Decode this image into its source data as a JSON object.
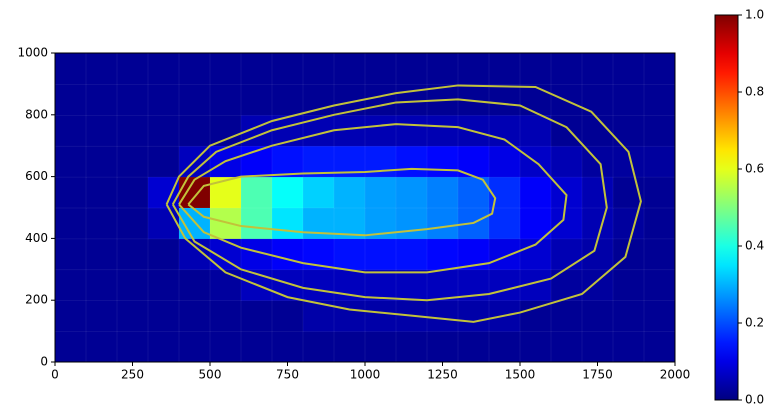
{
  "chart_data": {
    "type": "contour",
    "x": [
      50,
      150,
      250,
      350,
      450,
      550,
      650,
      750,
      850,
      950,
      1050,
      1150,
      1250,
      1350,
      1450,
      1550,
      1650,
      1750,
      1850,
      1950
    ],
    "y": [
      50,
      150,
      250,
      350,
      450,
      550,
      650,
      750,
      850,
      950
    ],
    "z": [
      [
        0.02,
        0.02,
        0.02,
        0.02,
        0.02,
        0.02,
        0.02,
        0.02,
        0.02,
        0.02,
        0.02,
        0.02,
        0.02,
        0.02,
        0.02,
        0.02,
        0.02,
        0.02,
        0.02,
        0.02
      ],
      [
        0.02,
        0.02,
        0.02,
        0.02,
        0.02,
        0.02,
        0.02,
        0.02,
        0.04,
        0.04,
        0.04,
        0.04,
        0.04,
        0.04,
        0.04,
        0.02,
        0.02,
        0.02,
        0.02,
        0.02
      ],
      [
        0.02,
        0.02,
        0.02,
        0.02,
        0.02,
        0.03,
        0.06,
        0.06,
        0.06,
        0.06,
        0.06,
        0.06,
        0.06,
        0.06,
        0.06,
        0.06,
        0.03,
        0.03,
        0.02,
        0.02
      ],
      [
        0.02,
        0.02,
        0.02,
        0.02,
        0.05,
        0.08,
        0.1,
        0.12,
        0.13,
        0.14,
        0.14,
        0.14,
        0.13,
        0.12,
        0.1,
        0.08,
        0.05,
        0.04,
        0.02,
        0.02
      ],
      [
        0.02,
        0.02,
        0.02,
        0.05,
        0.3,
        0.55,
        0.45,
        0.35,
        0.3,
        0.3,
        0.28,
        0.27,
        0.25,
        0.22,
        0.17,
        0.12,
        0.08,
        0.05,
        0.03,
        0.02
      ],
      [
        0.02,
        0.02,
        0.02,
        0.08,
        1.0,
        0.6,
        0.45,
        0.38,
        0.33,
        0.3,
        0.28,
        0.27,
        0.25,
        0.22,
        0.17,
        0.12,
        0.08,
        0.05,
        0.02,
        0.02
      ],
      [
        0.02,
        0.02,
        0.02,
        0.02,
        0.06,
        0.1,
        0.12,
        0.14,
        0.15,
        0.15,
        0.15,
        0.14,
        0.13,
        0.12,
        0.1,
        0.07,
        0.05,
        0.03,
        0.03,
        0.03
      ],
      [
        0.02,
        0.02,
        0.02,
        0.02,
        0.02,
        0.02,
        0.05,
        0.05,
        0.05,
        0.05,
        0.05,
        0.05,
        0.05,
        0.05,
        0.05,
        0.05,
        0.02,
        0.02,
        0.02,
        0.02
      ],
      [
        0.02,
        0.02,
        0.02,
        0.02,
        0.02,
        0.02,
        0.02,
        0.02,
        0.02,
        0.02,
        0.02,
        0.02,
        0.02,
        0.02,
        0.02,
        0.02,
        0.02,
        0.02,
        0.02,
        0.02
      ],
      [
        0.02,
        0.02,
        0.02,
        0.02,
        0.02,
        0.02,
        0.02,
        0.02,
        0.02,
        0.02,
        0.02,
        0.02,
        0.02,
        0.02,
        0.02,
        0.02,
        0.02,
        0.02,
        0.02,
        0.02
      ]
    ],
    "colormap": "jet",
    "contour_color": "#c2c23a",
    "contours": [
      {
        "x": [
          430,
          480,
          600,
          800,
          1000,
          1150,
          1300,
          1380,
          1420,
          1410,
          1350,
          1200,
          1000,
          800,
          600,
          480,
          430
        ],
        "y": [
          510,
          570,
          600,
          610,
          615,
          625,
          620,
          590,
          530,
          480,
          450,
          430,
          410,
          420,
          440,
          470,
          510
        ]
      },
      {
        "x": [
          400,
          450,
          550,
          700,
          900,
          1100,
          1300,
          1450,
          1560,
          1650,
          1640,
          1550,
          1400,
          1200,
          1000,
          800,
          600,
          480,
          400
        ],
        "y": [
          510,
          590,
          650,
          700,
          750,
          770,
          760,
          720,
          640,
          540,
          460,
          380,
          320,
          290,
          290,
          320,
          370,
          420,
          510
        ]
      },
      {
        "x": [
          380,
          430,
          520,
          700,
          900,
          1100,
          1300,
          1500,
          1650,
          1760,
          1780,
          1740,
          1600,
          1400,
          1200,
          1000,
          800,
          600,
          450,
          380
        ],
        "y": [
          510,
          600,
          680,
          750,
          800,
          840,
          850,
          830,
          760,
          640,
          500,
          360,
          270,
          220,
          200,
          210,
          240,
          300,
          390,
          510
        ]
      },
      {
        "x": [
          360,
          400,
          500,
          700,
          900,
          1100,
          1300,
          1550,
          1730,
          1850,
          1890,
          1840,
          1700,
          1500,
          1350,
          1150,
          950,
          750,
          550,
          420,
          360
        ],
        "y": [
          510,
          600,
          700,
          780,
          830,
          870,
          895,
          890,
          810,
          680,
          520,
          340,
          220,
          160,
          130,
          150,
          170,
          210,
          290,
          400,
          510
        ]
      }
    ],
    "xlim": [
      0,
      2000
    ],
    "xticks": [
      0,
      250,
      500,
      750,
      1000,
      1250,
      1500,
      1750,
      2000
    ],
    "ylim": [
      0,
      1000
    ],
    "yticks": [
      0,
      200,
      400,
      600,
      800,
      1000
    ],
    "clim": [
      0,
      1
    ],
    "cticks": [
      {
        "value": 0,
        "label": "0.0"
      },
      0.2,
      0.4,
      0.6,
      0.8,
      {
        "value": 1,
        "label": "1.0"
      }
    ]
  }
}
